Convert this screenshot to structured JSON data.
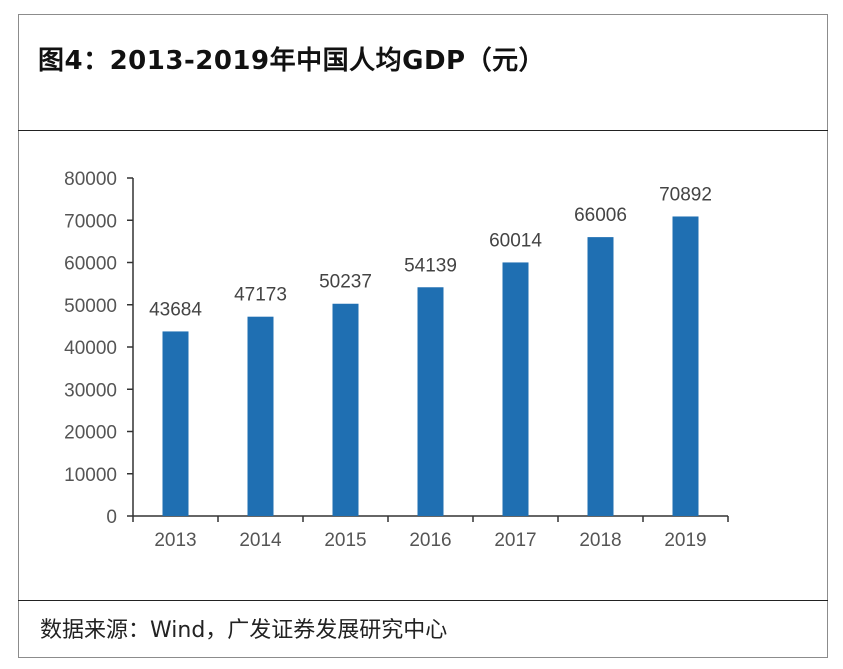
{
  "figure": {
    "title": "图4：2013-2019年中国人均GDP（元）",
    "source": "数据来源：Wind，广发证券发展研究中心"
  },
  "colors": {
    "bar": "#1f6fb2",
    "axis": "#333333",
    "text": "#555555"
  },
  "chart_data": {
    "type": "bar",
    "categories": [
      "2013",
      "2014",
      "2015",
      "2016",
      "2017",
      "2018",
      "2019"
    ],
    "values": [
      43684,
      47173,
      50237,
      54139,
      60014,
      66006,
      70892
    ],
    "title": "",
    "xlabel": "",
    "ylabel": "",
    "ylim": [
      0,
      80000
    ],
    "yticks": [
      0,
      10000,
      20000,
      30000,
      40000,
      50000,
      60000,
      70000,
      80000
    ],
    "grid": false,
    "legend": "none"
  }
}
